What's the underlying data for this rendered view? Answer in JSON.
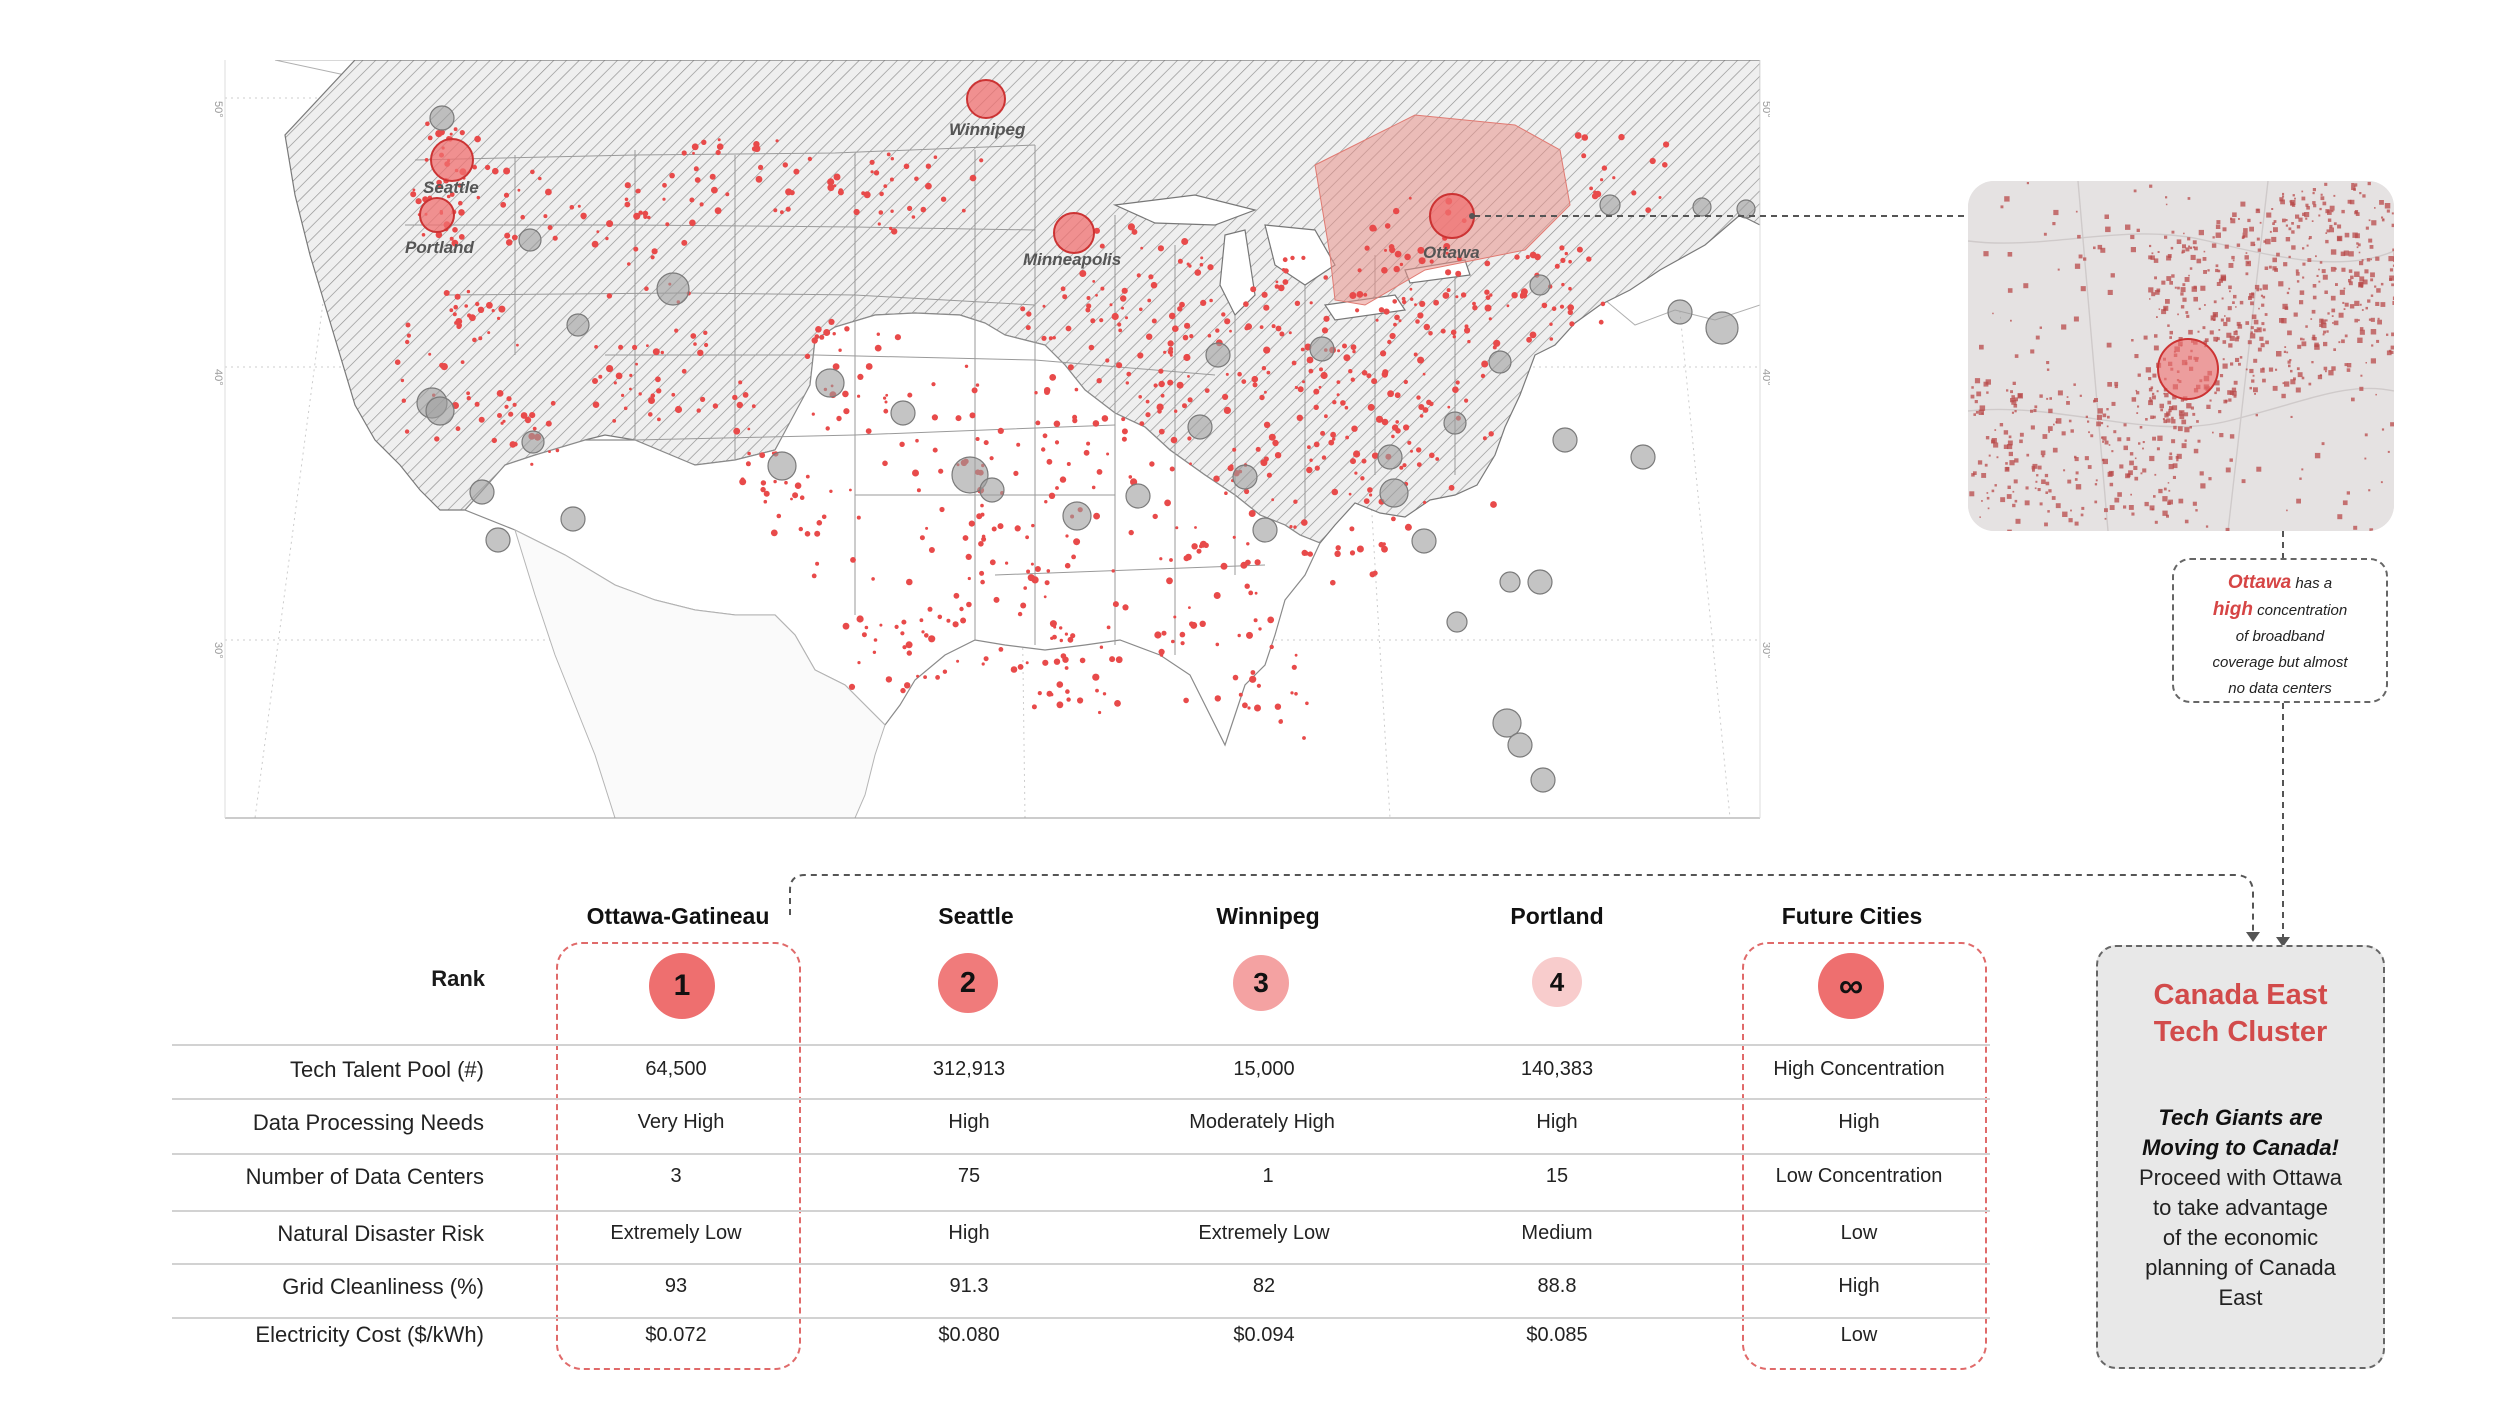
{
  "map": {
    "city_labels": [
      "Winnipeg",
      "Seattle",
      "Portland",
      "Minneapolis",
      "Ottawa"
    ],
    "lat_ticks": [
      "50°",
      "40°",
      "30°"
    ],
    "colors": {
      "dots": "#e84a4a",
      "highlight_circle": "#f07070",
      "grey_circle": "#9c9c9c",
      "region": "#e8928a"
    }
  },
  "inset": {
    "callout": {
      "red1": "Ottawa",
      "t1": "has a",
      "red2": "high",
      "t2": "concentration",
      "l3": "of broadband",
      "l4": "coverage but almost",
      "l5": "no data centers"
    }
  },
  "table": {
    "rank_label": "Rank",
    "columns": [
      {
        "name": "Ottawa-Gatineau",
        "rank": "1"
      },
      {
        "name": "Seattle",
        "rank": "2"
      },
      {
        "name": "Winnipeg",
        "rank": "3"
      },
      {
        "name": "Portland",
        "rank": "4"
      },
      {
        "name": "Future Cities",
        "rank": "∞"
      }
    ],
    "rows": [
      {
        "label": "Tech Talent Pool (#)",
        "values": [
          "64,500",
          "312,913",
          "15,000",
          "140,383",
          "High Concentration"
        ]
      },
      {
        "label": "Data Processing Needs",
        "values": [
          "Very High",
          "High",
          "Moderately High",
          "High",
          "High"
        ]
      },
      {
        "label": "Number of Data Centers",
        "values": [
          "3",
          "75",
          "1",
          "15",
          "Low Concentration"
        ]
      },
      {
        "label": "Natural Disaster Risk",
        "values": [
          "Extremely Low",
          "High",
          "Extremely Low",
          "Medium",
          "Low"
        ]
      },
      {
        "label": "Grid Cleanliness (%)",
        "values": [
          "93",
          "91.3",
          "82",
          "88.8",
          "High"
        ]
      },
      {
        "label": "Electricity Cost ($/kWh)",
        "values": [
          "$0.072",
          "$0.080",
          "$0.094",
          "$0.085",
          "Low"
        ]
      }
    ]
  },
  "card": {
    "title_line1": "Canada East",
    "title_line2": "Tech Cluster",
    "sub_line1": "Tech Giants are",
    "sub_line2": "Moving to Canada!",
    "body_lines": [
      "Proceed with Ottawa",
      "to take advantage",
      "of the economic",
      "planning of Canada",
      "East"
    ]
  }
}
